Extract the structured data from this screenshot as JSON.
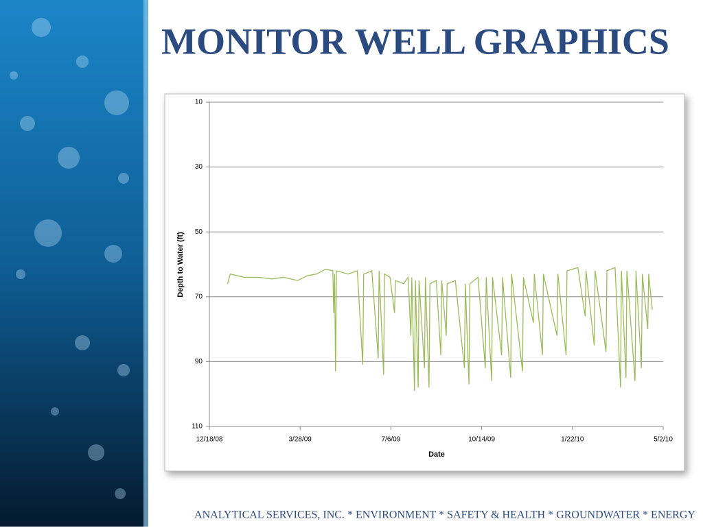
{
  "title": "MONITOR WELL GRAPHICS",
  "footer": "ANALYTICAL SERVICES, INC. * ENVIRONMENT * SAFETY & HEALTH * GROUNDWATER * ENERGY",
  "chart_data": {
    "type": "line",
    "x_label": "Date",
    "y_label": "Depth to Water (ft)",
    "color": "#9bbb59",
    "grid": true,
    "y_inverted": true,
    "xlim": [
      "2008-12-18",
      "2010-05-02"
    ],
    "xticks": [
      {
        "value": "2008-12-18",
        "label": "12/18/08"
      },
      {
        "value": "2009-03-28",
        "label": "3/28/09"
      },
      {
        "value": "2009-07-06",
        "label": "7/6/09"
      },
      {
        "value": "2009-10-14",
        "label": "10/14/09"
      },
      {
        "value": "2010-01-22",
        "label": "1/22/10"
      },
      {
        "value": "2010-05-02",
        "label": "5/2/10"
      }
    ],
    "ylim": [
      10,
      110
    ],
    "yticks": [
      10,
      30,
      50,
      70,
      90,
      110
    ],
    "x": [
      "2009-01-07",
      "2009-01-10",
      "2009-01-25",
      "2009-02-10",
      "2009-02-25",
      "2009-03-10",
      "2009-03-25",
      "2009-04-05",
      "2009-04-15",
      "2009-04-25",
      "2009-05-03",
      "2009-05-04",
      "2009-05-05",
      "2009-05-06",
      "2009-05-07",
      "2009-05-20",
      "2009-05-30",
      "2009-06-05",
      "2009-06-06",
      "2009-06-15",
      "2009-06-22",
      "2009-06-23",
      "2009-06-28",
      "2009-06-29",
      "2009-07-05",
      "2009-07-10",
      "2009-07-11",
      "2009-07-20",
      "2009-07-25",
      "2009-07-28",
      "2009-07-29",
      "2009-08-01",
      "2009-08-02",
      "2009-08-05",
      "2009-08-06",
      "2009-08-12",
      "2009-08-13",
      "2009-08-17",
      "2009-08-18",
      "2009-08-25",
      "2009-08-30",
      "2009-08-31",
      "2009-09-05",
      "2009-09-06",
      "2009-09-15",
      "2009-09-25",
      "2009-09-26",
      "2009-09-30",
      "2009-10-01",
      "2009-10-10",
      "2009-10-18",
      "2009-10-19",
      "2009-10-25",
      "2009-10-26",
      "2009-11-05",
      "2009-11-06",
      "2009-11-15",
      "2009-11-16",
      "2009-11-28",
      "2009-11-29",
      "2009-12-10",
      "2009-12-11",
      "2009-12-20",
      "2009-12-21",
      "2010-01-05",
      "2010-01-06",
      "2010-01-15",
      "2010-01-16",
      "2010-01-28",
      "2010-02-05",
      "2010-02-06",
      "2010-02-15",
      "2010-02-16",
      "2010-02-28",
      "2010-03-01",
      "2010-03-10",
      "2010-03-16",
      "2010-03-17",
      "2010-03-22",
      "2010-03-23",
      "2010-04-01",
      "2010-04-02",
      "2010-04-08",
      "2010-04-09",
      "2010-04-15",
      "2010-04-16",
      "2010-04-20"
    ],
    "values": [
      66,
      63,
      64,
      64,
      64.5,
      64,
      65,
      63.5,
      63,
      61.5,
      62,
      75,
      63,
      93,
      62,
      63,
      62,
      91,
      63,
      62,
      89,
      62,
      94,
      63,
      64,
      75,
      65,
      66,
      64,
      82,
      64,
      99,
      65,
      98,
      65,
      92,
      64,
      98,
      66,
      65,
      88,
      65,
      82,
      66,
      65,
      92,
      66,
      97,
      66,
      64,
      92,
      64,
      96,
      64,
      88,
      64,
      95,
      63,
      93,
      64,
      78,
      63,
      88,
      63,
      82,
      63,
      88,
      62,
      61,
      76,
      62,
      85,
      62,
      87,
      62,
      61,
      98,
      62,
      95,
      62,
      96,
      62,
      92,
      63,
      80,
      63,
      74
    ]
  }
}
